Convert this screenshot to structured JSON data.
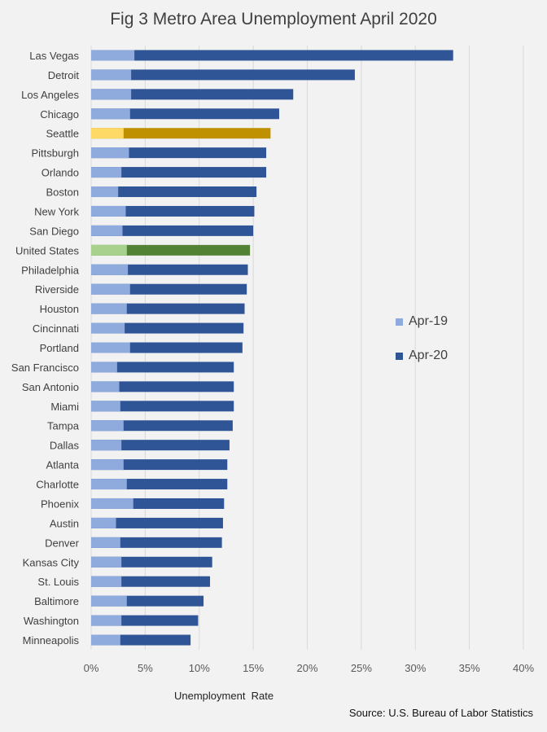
{
  "chart_data": {
    "type": "bar",
    "orientation": "horizontal",
    "stacked": false,
    "title": "Fig 3 Metro Area Unemployment April 2020",
    "xlabel": "Unemployment  Rate",
    "source": "Source: U.S. Bureau of Labor Statistics",
    "xlim": [
      0,
      40
    ],
    "x_ticks": [
      "0%",
      "5%",
      "10%",
      "15%",
      "20%",
      "25%",
      "30%",
      "35%",
      "40%"
    ],
    "grid": "vertical",
    "legend_position": "right",
    "categories": [
      "Las Vegas",
      "Detroit",
      "Los Angeles",
      "Chicago",
      "Seattle",
      "Pittsburgh",
      "Orlando",
      "Boston",
      "New York",
      "San Diego",
      "United States",
      "Philadelphia",
      "Riverside",
      "Houston",
      "Cincinnati",
      "Portland",
      "San Francisco",
      "San Antonio",
      "Miami",
      "Tampa",
      "Dallas",
      "Atlanta",
      "Charlotte",
      "Phoenix",
      "Austin",
      "Denver",
      "Kansas City",
      "St. Louis",
      "Baltimore",
      "Washington",
      "Minneapolis"
    ],
    "series": [
      {
        "name": "Apr-19",
        "color": "#8faadc",
        "values": [
          4.0,
          3.7,
          3.7,
          3.6,
          3.0,
          3.5,
          2.8,
          2.5,
          3.2,
          2.9,
          3.3,
          3.4,
          3.6,
          3.3,
          3.1,
          3.6,
          2.4,
          2.6,
          2.7,
          3.0,
          2.8,
          3.0,
          3.3,
          3.9,
          2.3,
          2.7,
          2.8,
          2.8,
          3.3,
          2.8,
          2.7
        ]
      },
      {
        "name": "Apr-20",
        "color": "#2f5597",
        "values": [
          33.5,
          24.4,
          18.7,
          17.4,
          16.6,
          16.2,
          16.2,
          15.3,
          15.1,
          15.0,
          14.7,
          14.5,
          14.4,
          14.2,
          14.1,
          14.0,
          13.2,
          13.2,
          13.2,
          13.1,
          12.8,
          12.6,
          12.6,
          12.3,
          12.2,
          12.1,
          11.2,
          11.0,
          10.4,
          9.9,
          9.2
        ]
      }
    ],
    "highlight_colors": {
      "Seattle": {
        "Apr-19": "#ffd966",
        "Apr-20": "#bf9000"
      },
      "United States": {
        "Apr-19": "#a9d18e",
        "Apr-20": "#548235"
      }
    }
  }
}
